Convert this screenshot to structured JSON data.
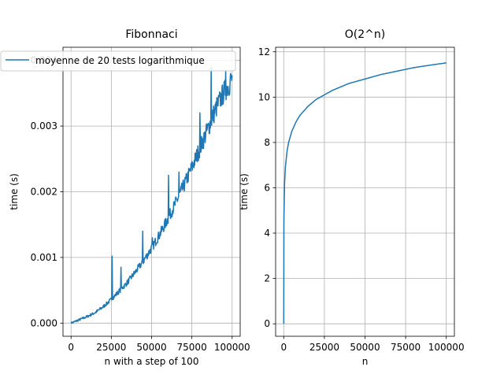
{
  "chart_data": [
    {
      "type": "line",
      "title": "Fibonnaci",
      "xlabel": "n with a step of 100",
      "ylabel": "time (s)",
      "xlim": [
        -5000,
        105000
      ],
      "ylim": [
        -0.0002,
        0.0042
      ],
      "x_ticks": [
        0,
        25000,
        50000,
        75000,
        100000
      ],
      "x_tick_labels": [
        "0",
        "25000",
        "50000",
        "75000",
        "100000"
      ],
      "y_ticks": [
        0.0,
        0.001,
        0.002,
        0.003,
        0.004
      ],
      "y_tick_labels": [
        "0.000",
        "0.001",
        "0.002",
        "0.003",
        "0.004"
      ],
      "grid": true,
      "legend_position": "top-left",
      "color": "#1f77b4",
      "series": [
        {
          "name": "moyenne de 20 tests logarithmique",
          "x": [
            0,
            5000,
            10000,
            15000,
            20000,
            25000,
            30000,
            35000,
            40000,
            45000,
            50000,
            55000,
            60000,
            65000,
            70000,
            75000,
            80000,
            85000,
            90000,
            95000,
            100000
          ],
          "y": [
            0.0,
            5e-05,
            0.0001,
            0.00016,
            0.00025,
            0.00036,
            0.00049,
            0.00062,
            0.00078,
            0.00095,
            0.00114,
            0.00135,
            0.00158,
            0.00183,
            0.00209,
            0.00237,
            0.00266,
            0.00296,
            0.00327,
            0.00352,
            0.0037
          ],
          "spikes": [
            {
              "x": 25500,
              "y": 0.00102
            },
            {
              "x": 31000,
              "y": 0.00085
            },
            {
              "x": 44500,
              "y": 0.0014
            },
            {
              "x": 50500,
              "y": 0.0013
            },
            {
              "x": 60500,
              "y": 0.00225
            },
            {
              "x": 67000,
              "y": 0.0023
            },
            {
              "x": 80000,
              "y": 0.0032
            },
            {
              "x": 87000,
              "y": 0.0039
            },
            {
              "x": 96000,
              "y": 0.00385
            },
            {
              "x": 99000,
              "y": 0.0038
            }
          ]
        }
      ]
    },
    {
      "type": "line",
      "title": "O(2^n)",
      "xlabel": "n",
      "ylabel": "time (s)",
      "xlim": [
        -5000,
        105000
      ],
      "ylim": [
        -0.55,
        12.2
      ],
      "x_ticks": [
        0,
        25000,
        50000,
        75000,
        100000
      ],
      "x_tick_labels": [
        "0",
        "25000",
        "50000",
        "75000",
        "100000"
      ],
      "y_ticks": [
        0,
        2,
        4,
        6,
        8,
        10,
        12
      ],
      "y_tick_labels": [
        "0",
        "2",
        "4",
        "6",
        "8",
        "10",
        "12"
      ],
      "grid": true,
      "color": "#1f77b4",
      "series": [
        {
          "x": [
            1,
            100,
            500,
            1000,
            2000,
            3000,
            5000,
            7500,
            10000,
            15000,
            20000,
            25000,
            30000,
            40000,
            50000,
            60000,
            70000,
            80000,
            90000,
            100000
          ],
          "y": [
            0.0,
            4.6,
            6.2,
            6.9,
            7.6,
            8.0,
            8.5,
            8.9,
            9.2,
            9.6,
            9.9,
            10.1,
            10.3,
            10.6,
            10.8,
            11.0,
            11.15,
            11.3,
            11.41,
            11.51
          ]
        }
      ]
    }
  ]
}
